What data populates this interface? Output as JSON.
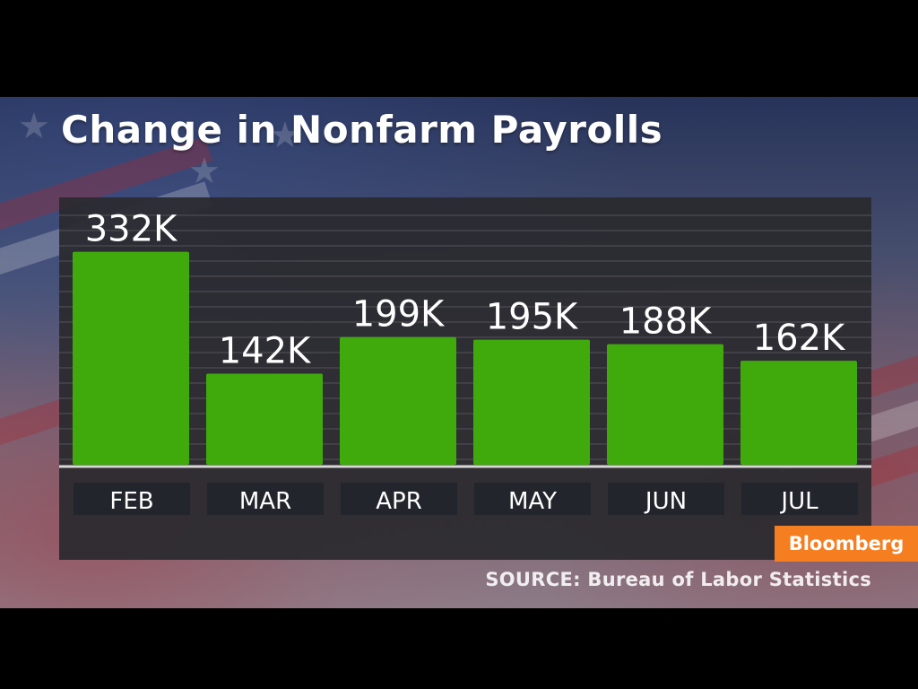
{
  "title": "Change in Nonfarm Payrolls",
  "brand": "Bloomberg",
  "source": "SOURCE: Bureau of Labor Statistics",
  "colors": {
    "bar": "#40aa0c",
    "panel": "#2a2a2e",
    "label_box": "#23252d",
    "brand": "#f47e20",
    "text": "#ffffff"
  },
  "chart_data": {
    "type": "bar",
    "title": "Change in Nonfarm Payrolls",
    "categories": [
      "FEB",
      "MAR",
      "APR",
      "MAY",
      "JUN",
      "JUL"
    ],
    "values": [
      332,
      142,
      199,
      195,
      188,
      162
    ],
    "data_labels": [
      "332K",
      "142K",
      "199K",
      "195K",
      "188K",
      "162K"
    ],
    "unit": "K",
    "ylim": [
      0,
      400
    ],
    "grid": true,
    "legend": "none"
  }
}
